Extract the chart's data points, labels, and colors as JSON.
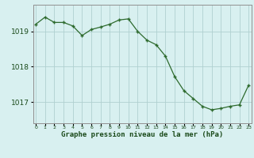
{
  "hours": [
    0,
    1,
    2,
    3,
    4,
    5,
    6,
    7,
    8,
    9,
    10,
    11,
    12,
    13,
    14,
    15,
    16,
    17,
    18,
    19,
    20,
    21,
    22,
    23
  ],
  "pressure": [
    1019.2,
    1019.4,
    1019.25,
    1019.25,
    1019.15,
    1018.88,
    1019.05,
    1019.12,
    1019.2,
    1019.32,
    1019.35,
    1019.0,
    1018.75,
    1018.62,
    1018.3,
    1017.72,
    1017.32,
    1017.1,
    1016.88,
    1016.78,
    1016.82,
    1016.88,
    1016.92,
    1017.48
  ],
  "line_color": "#2d6a2d",
  "marker_color": "#2d6a2d",
  "bg_color": "#d8f0f0",
  "grid_color": "#b0d0d0",
  "xlabel": "Graphe pression niveau de la mer (hPa)",
  "xlabel_color": "#1a4a1a",
  "tick_color": "#1a4a1a",
  "yticks": [
    1017,
    1018,
    1019
  ],
  "ylim": [
    1016.4,
    1019.75
  ],
  "xlim": [
    -0.3,
    23.3
  ]
}
